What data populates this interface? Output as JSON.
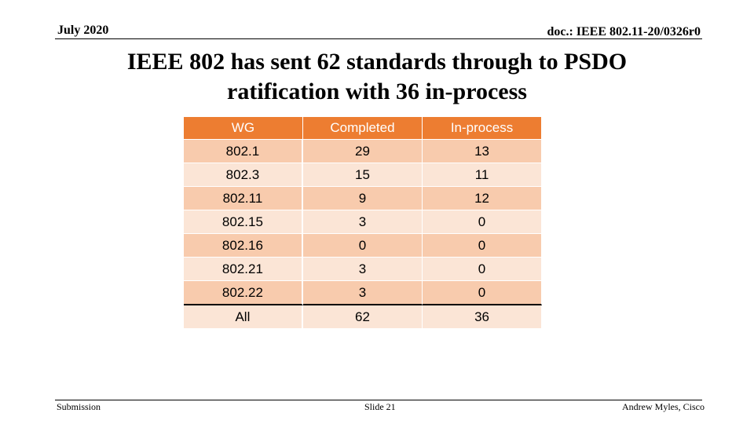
{
  "header": {
    "date": "July 2020",
    "doc": "doc.: IEEE 802.11-20/0326r0"
  },
  "title": {
    "line1": "IEEE 802 has sent 62 standards through to PSDO",
    "line2": "ratification with 36 in-process"
  },
  "table": {
    "columns": [
      "WG",
      "Completed",
      "In-process"
    ],
    "rows": [
      [
        "802.1",
        "29",
        "13"
      ],
      [
        "802.3",
        "15",
        "11"
      ],
      [
        "802.11",
        "9",
        "12"
      ],
      [
        "802.15",
        "3",
        "0"
      ],
      [
        "802.16",
        "0",
        "0"
      ],
      [
        "802.21",
        "3",
        "0"
      ],
      [
        "802.22",
        "3",
        "0"
      ],
      [
        "All",
        "62",
        "36"
      ]
    ]
  },
  "footer": {
    "left": "Submission",
    "center": "Slide 21",
    "right": "Andrew Myles, Cisco"
  },
  "colors": {
    "header_fill": "#ed7d31",
    "row_dark": "#f8cbad",
    "row_light": "#fbe5d6"
  }
}
